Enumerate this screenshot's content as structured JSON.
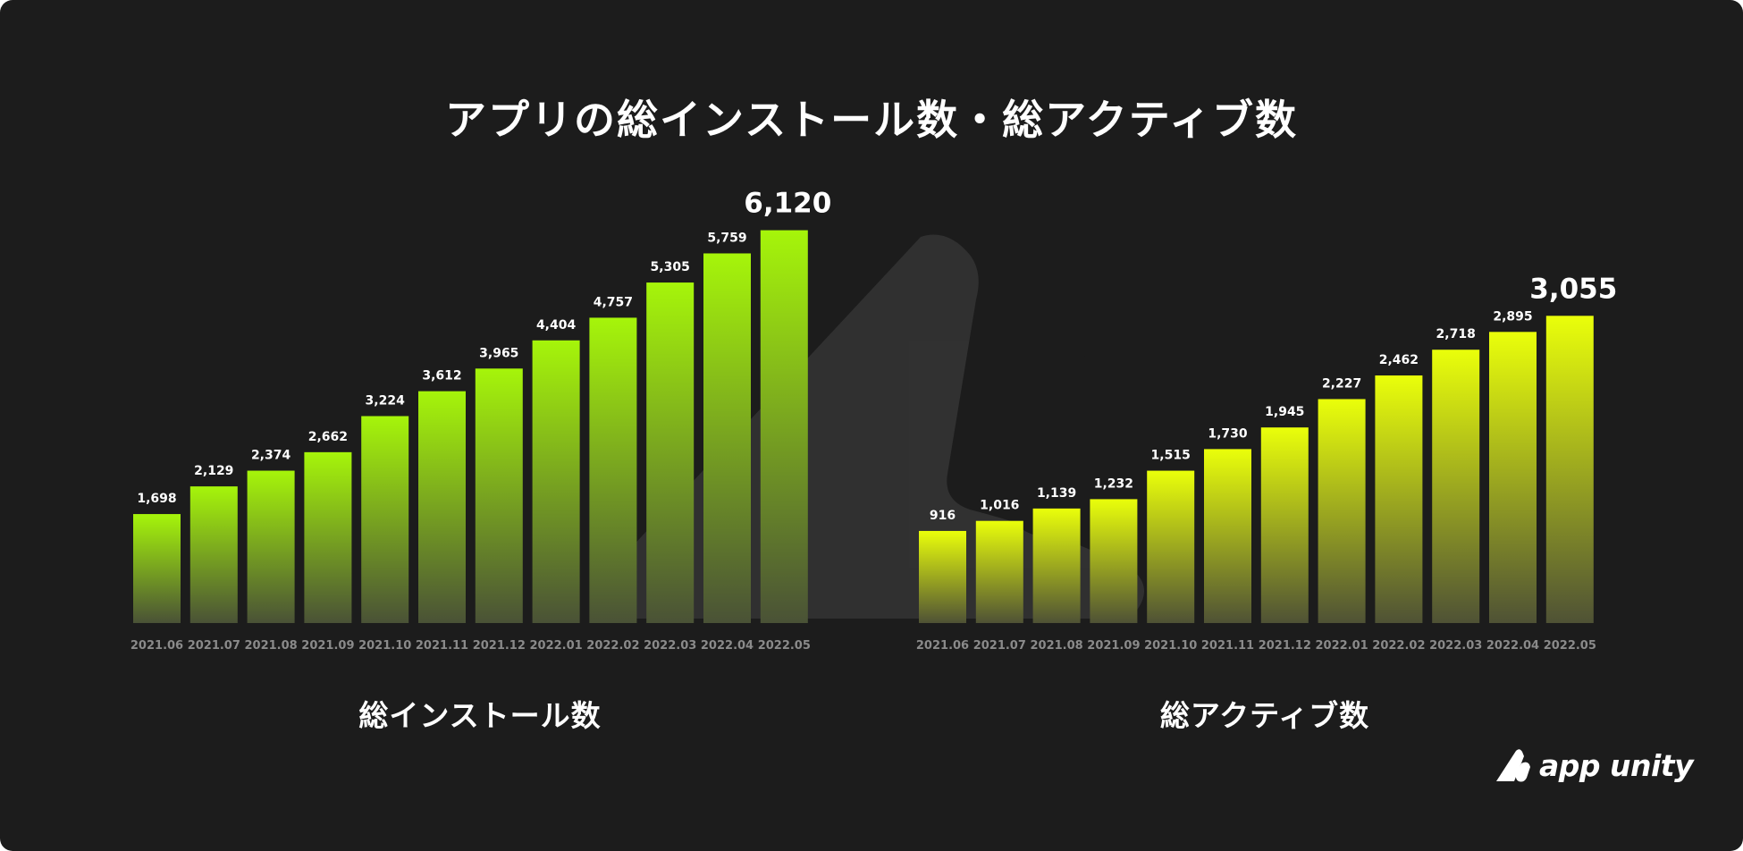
{
  "title": "アプリの総インストール数・総アクティブ数",
  "brand": {
    "name": "app unity",
    "accent_color": "#a4f50a",
    "accent_color_2": "#e6ff0a",
    "background": "#1c1c1c"
  },
  "chart_data": [
    {
      "type": "bar",
      "title": "総インストール数",
      "categories": [
        "2021.06",
        "2021.07",
        "2021.08",
        "2021.09",
        "2021.10",
        "2021.11",
        "2021.12",
        "2022.01",
        "2022.02",
        "2022.03",
        "2022.04",
        "2022.05"
      ],
      "values": [
        1698,
        2129,
        2374,
        2662,
        3224,
        3612,
        3965,
        4404,
        4757,
        5305,
        5759,
        6120
      ],
      "value_labels": [
        "1,698",
        "2,129",
        "2,374",
        "2,662",
        "3,224",
        "3,612",
        "3,965",
        "4,404",
        "4,757",
        "5,305",
        "5,759",
        "6,120"
      ],
      "ylim": [
        0,
        7200
      ],
      "grid": false,
      "gradient_top_color": "#a6f50a",
      "gradient_bottom_color": "#4a5236"
    },
    {
      "type": "bar",
      "title": "総アクティブ数",
      "categories": [
        "2021.06",
        "2021.07",
        "2021.08",
        "2021.09",
        "2021.10",
        "2021.11",
        "2021.12",
        "2022.01",
        "2022.02",
        "2022.03",
        "2022.04",
        "2022.05"
      ],
      "values": [
        916,
        1016,
        1139,
        1232,
        1515,
        1730,
        1945,
        2227,
        2462,
        2718,
        2895,
        3055
      ],
      "value_labels": [
        "916",
        "1,016",
        "1,139",
        "1,232",
        "1,515",
        "1,730",
        "1,945",
        "2,227",
        "2,462",
        "2,718",
        "2,895",
        "3,055"
      ],
      "ylim": [
        0,
        4000
      ],
      "grid": false,
      "gradient_top_color": "#eaff0a",
      "gradient_bottom_color": "#4f5235"
    }
  ]
}
